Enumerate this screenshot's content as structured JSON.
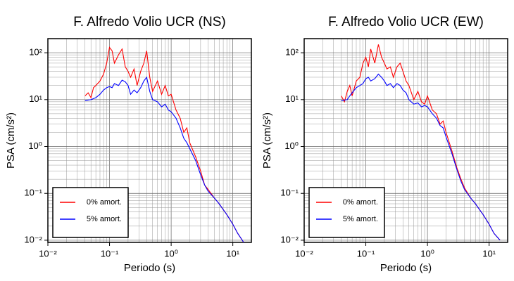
{
  "chart_data": [
    {
      "type": "line",
      "title": "F. Alfredo Volio UCR (NS)",
      "xlabel": "Periodo (s)",
      "ylabel": "PSA (cm/s²)",
      "xscale": "log",
      "yscale": "log",
      "grid": true,
      "legend": "lower left",
      "xlim": [
        0.01,
        20
      ],
      "ylim": [
        0.009,
        200
      ],
      "xticks": [
        {
          "value": 0.01,
          "label": "10⁻²"
        },
        {
          "value": 0.1,
          "label": "10⁻¹"
        },
        {
          "value": 1,
          "label": "10⁰"
        },
        {
          "value": 10,
          "label": "10¹"
        }
      ],
      "yticks": [
        {
          "value": 0.01,
          "label": "10⁻²"
        },
        {
          "value": 0.1,
          "label": "10⁻¹"
        },
        {
          "value": 1,
          "label": "10⁰"
        },
        {
          "value": 10,
          "label": "10¹"
        },
        {
          "value": 100,
          "label": "10²"
        }
      ],
      "x": [
        0.04,
        0.045,
        0.05,
        0.055,
        0.06,
        0.07,
        0.08,
        0.09,
        0.1,
        0.11,
        0.12,
        0.14,
        0.16,
        0.18,
        0.2,
        0.22,
        0.25,
        0.28,
        0.32,
        0.36,
        0.4,
        0.45,
        0.5,
        0.6,
        0.7,
        0.8,
        0.9,
        1.0,
        1.2,
        1.4,
        1.6,
        1.8,
        2.0,
        2.5,
        3.0,
        3.5,
        4.0,
        5.0,
        6.0,
        7.0,
        8.0,
        10,
        12,
        15
      ],
      "series": [
        {
          "name": "0% amort.",
          "color": "#ff0000",
          "values": [
            12,
            14,
            11,
            18,
            20,
            25,
            35,
            60,
            130,
            110,
            60,
            90,
            120,
            50,
            40,
            30,
            45,
            20,
            40,
            60,
            110,
            30,
            15,
            25,
            13,
            20,
            12,
            13,
            6,
            4,
            2,
            2.5,
            1.2,
            0.6,
            0.3,
            0.15,
            0.12,
            0.08,
            0.06,
            0.045,
            0.035,
            0.022,
            0.014,
            0.009
          ]
        },
        {
          "name": "5% amort.",
          "color": "#0000ff",
          "values": [
            9.5,
            9.8,
            10,
            10.5,
            11,
            13,
            16,
            18,
            19,
            18,
            22,
            20,
            26,
            24,
            20,
            13,
            16,
            14,
            18,
            25,
            30,
            15,
            10,
            9,
            7,
            8,
            6,
            5.5,
            4,
            2.5,
            1.5,
            1.2,
            0.9,
            0.5,
            0.25,
            0.15,
            0.11,
            0.08,
            0.06,
            0.045,
            0.035,
            0.022,
            0.014,
            0.009
          ]
        }
      ]
    },
    {
      "type": "line",
      "title": "F. Alfredo Volio UCR (EW)",
      "xlabel": "Periodo (s)",
      "ylabel": "PSA (cm/s²)",
      "xscale": "log",
      "yscale": "log",
      "grid": true,
      "legend": "lower left",
      "xlim": [
        0.01,
        20
      ],
      "ylim": [
        0.009,
        200
      ],
      "xticks": [
        {
          "value": 0.01,
          "label": "10⁻²"
        },
        {
          "value": 0.1,
          "label": "10⁻¹"
        },
        {
          "value": 1,
          "label": "10⁰"
        },
        {
          "value": 10,
          "label": "10¹"
        }
      ],
      "yticks": [
        {
          "value": 0.01,
          "label": "10⁻²"
        },
        {
          "value": 0.1,
          "label": "10⁻¹"
        },
        {
          "value": 1,
          "label": "10⁰"
        },
        {
          "value": 10,
          "label": "10¹"
        },
        {
          "value": 100,
          "label": "10²"
        }
      ],
      "x": [
        0.04,
        0.045,
        0.05,
        0.055,
        0.06,
        0.07,
        0.08,
        0.09,
        0.1,
        0.11,
        0.12,
        0.14,
        0.16,
        0.18,
        0.2,
        0.22,
        0.25,
        0.28,
        0.32,
        0.36,
        0.4,
        0.45,
        0.5,
        0.6,
        0.7,
        0.8,
        0.9,
        1.0,
        1.2,
        1.4,
        1.6,
        1.8,
        2.0,
        2.5,
        3.0,
        3.5,
        4.0,
        5.0,
        6.0,
        7.0,
        8.0,
        10,
        12,
        15
      ],
      "series": [
        {
          "name": "0% amort.",
          "color": "#ff0000",
          "values": [
            12,
            9,
            15,
            20,
            12,
            25,
            30,
            60,
            80,
            50,
            120,
            60,
            150,
            80,
            60,
            45,
            50,
            30,
            50,
            60,
            40,
            25,
            20,
            10,
            15,
            9,
            8,
            12,
            6,
            5,
            3,
            3.5,
            2,
            0.8,
            0.35,
            0.2,
            0.13,
            0.08,
            0.06,
            0.045,
            0.035,
            0.022,
            0.014,
            0.01
          ]
        },
        {
          "name": "5% amort.",
          "color": "#0000ff",
          "values": [
            9.5,
            9.8,
            10,
            12,
            14,
            18,
            20,
            22,
            28,
            30,
            25,
            28,
            35,
            30,
            25,
            20,
            22,
            18,
            22,
            20,
            16,
            14,
            10,
            8,
            8.5,
            7,
            7.5,
            7,
            5,
            4,
            2.8,
            2.5,
            1.6,
            0.7,
            0.32,
            0.18,
            0.12,
            0.08,
            0.06,
            0.045,
            0.035,
            0.022,
            0.014,
            0.01
          ]
        }
      ]
    }
  ]
}
